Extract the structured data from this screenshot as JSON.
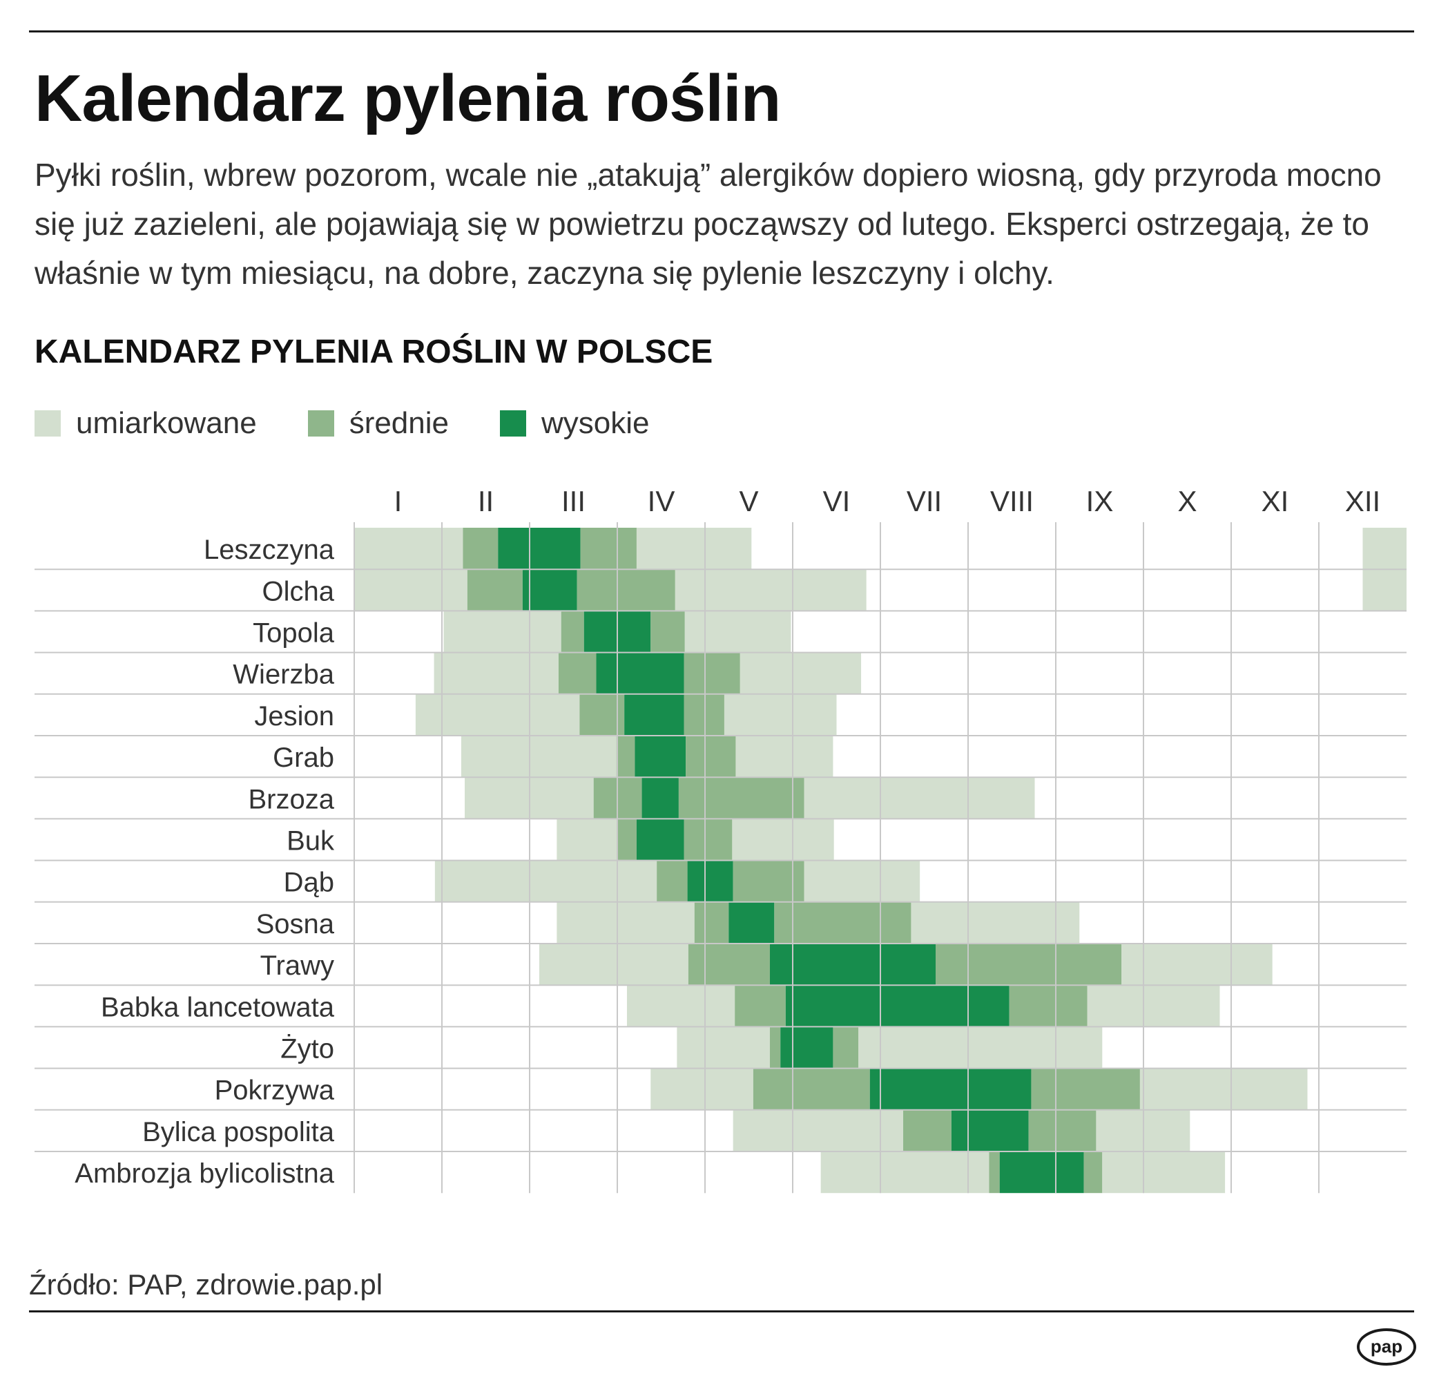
{
  "header": {
    "title": "Kalendarz pylenia roślin",
    "intro": "Pyłki roślin, wbrew pozorom, wcale nie „atakują” alergików dopiero wiosną, gdy przyroda mocno się już zazieleni, ale pojawiają się w powietrzu począwszy od lutego. Eksperci ostrzegają, że to właśnie w tym miesiącu, na dobre, zaczyna się pylenie leszczyny i olchy."
  },
  "footer": {
    "source": "Źródło: PAP, zdrowie.pap.pl",
    "logo_text": "pap",
    "logo_icon": "pap-logo-icon"
  },
  "chart_data": {
    "type": "table",
    "title": "KALENDARZ PYLENIA ROŚLIN W POLSCE",
    "legend_placement": "top-left",
    "x_unit": "month (1 = I … 13 = end of XII)",
    "xlim": [
      1,
      13
    ],
    "months": [
      "I",
      "II",
      "III",
      "IV",
      "V",
      "VI",
      "VII",
      "VIII",
      "IX",
      "X",
      "XI",
      "XII"
    ],
    "levels": [
      {
        "key": "umiarkowane",
        "name": "umiarkowane",
        "color": "#d3dfcf"
      },
      {
        "key": "srednie",
        "name": "średnie",
        "color": "#8fb68b"
      },
      {
        "key": "wysokie",
        "name": "wysokie",
        "color": "#178d4d"
      }
    ],
    "gridline_color": "#c8c8c8",
    "plants": [
      {
        "name": "Leszczyna",
        "periods": [
          {
            "level": "umiarkowane",
            "start": 1.0,
            "end": 2.24
          },
          {
            "level": "srednie",
            "start": 2.24,
            "end": 2.64
          },
          {
            "level": "wysokie",
            "start": 2.64,
            "end": 3.58
          },
          {
            "level": "srednie",
            "start": 3.58,
            "end": 4.22
          },
          {
            "level": "umiarkowane",
            "start": 4.22,
            "end": 5.53
          },
          {
            "level": "umiarkowane",
            "start": 12.5,
            "end": 13.0
          }
        ]
      },
      {
        "name": "Olcha",
        "periods": [
          {
            "level": "umiarkowane",
            "start": 1.0,
            "end": 2.29
          },
          {
            "level": "srednie",
            "start": 2.29,
            "end": 2.92
          },
          {
            "level": "wysokie",
            "start": 2.92,
            "end": 3.54
          },
          {
            "level": "srednie",
            "start": 3.54,
            "end": 4.66
          },
          {
            "level": "umiarkowane",
            "start": 4.66,
            "end": 6.84
          },
          {
            "level": "umiarkowane",
            "start": 12.5,
            "end": 13.0
          }
        ]
      },
      {
        "name": "Topola",
        "periods": [
          {
            "level": "umiarkowane",
            "start": 2.02,
            "end": 3.36
          },
          {
            "level": "srednie",
            "start": 3.36,
            "end": 3.62
          },
          {
            "level": "wysokie",
            "start": 3.62,
            "end": 4.38
          },
          {
            "level": "srednie",
            "start": 4.38,
            "end": 4.77
          },
          {
            "level": "umiarkowane",
            "start": 4.77,
            "end": 5.98
          }
        ]
      },
      {
        "name": "Wierzba",
        "periods": [
          {
            "level": "umiarkowane",
            "start": 1.91,
            "end": 3.33
          },
          {
            "level": "srednie",
            "start": 3.33,
            "end": 3.76
          },
          {
            "level": "wysokie",
            "start": 3.76,
            "end": 4.76
          },
          {
            "level": "srednie",
            "start": 4.76,
            "end": 5.4
          },
          {
            "level": "umiarkowane",
            "start": 5.4,
            "end": 6.78
          }
        ]
      },
      {
        "name": "Jesion",
        "periods": [
          {
            "level": "umiarkowane",
            "start": 1.7,
            "end": 3.57
          },
          {
            "level": "srednie",
            "start": 3.57,
            "end": 4.08
          },
          {
            "level": "wysokie",
            "start": 4.08,
            "end": 4.76
          },
          {
            "level": "srednie",
            "start": 4.76,
            "end": 5.22
          },
          {
            "level": "umiarkowane",
            "start": 5.22,
            "end": 6.5
          }
        ]
      },
      {
        "name": "Grab",
        "periods": [
          {
            "level": "umiarkowane",
            "start": 2.22,
            "end": 3.99
          },
          {
            "level": "srednie",
            "start": 3.99,
            "end": 4.2
          },
          {
            "level": "wysokie",
            "start": 4.2,
            "end": 4.78
          },
          {
            "level": "srednie",
            "start": 4.78,
            "end": 5.35
          },
          {
            "level": "umiarkowane",
            "start": 5.35,
            "end": 6.46
          }
        ]
      },
      {
        "name": "Brzoza",
        "periods": [
          {
            "level": "umiarkowane",
            "start": 2.26,
            "end": 3.73
          },
          {
            "level": "srednie",
            "start": 3.73,
            "end": 4.28
          },
          {
            "level": "wysokie",
            "start": 4.28,
            "end": 4.7
          },
          {
            "level": "srednie",
            "start": 4.7,
            "end": 6.13
          },
          {
            "level": "umiarkowane",
            "start": 6.13,
            "end": 8.76
          }
        ]
      },
      {
        "name": "Buk",
        "periods": [
          {
            "level": "umiarkowane",
            "start": 3.31,
            "end": 4.0
          },
          {
            "level": "srednie",
            "start": 4.0,
            "end": 4.22
          },
          {
            "level": "wysokie",
            "start": 4.22,
            "end": 4.76
          },
          {
            "level": "srednie",
            "start": 4.76,
            "end": 5.31
          },
          {
            "level": "umiarkowane",
            "start": 5.31,
            "end": 6.47
          }
        ]
      },
      {
        "name": "Dąb",
        "periods": [
          {
            "level": "umiarkowane",
            "start": 1.92,
            "end": 4.45
          },
          {
            "level": "srednie",
            "start": 4.45,
            "end": 4.8
          },
          {
            "level": "wysokie",
            "start": 4.8,
            "end": 5.32
          },
          {
            "level": "srednie",
            "start": 5.32,
            "end": 6.13
          },
          {
            "level": "umiarkowane",
            "start": 6.13,
            "end": 7.45
          }
        ]
      },
      {
        "name": "Sosna",
        "periods": [
          {
            "level": "umiarkowane",
            "start": 3.31,
            "end": 4.88
          },
          {
            "level": "srednie",
            "start": 4.88,
            "end": 5.27
          },
          {
            "level": "wysokie",
            "start": 5.27,
            "end": 5.79
          },
          {
            "level": "srednie",
            "start": 5.79,
            "end": 7.35
          },
          {
            "level": "umiarkowane",
            "start": 7.35,
            "end": 9.27
          }
        ]
      },
      {
        "name": "Trawy",
        "periods": [
          {
            "level": "umiarkowane",
            "start": 3.11,
            "end": 4.81
          },
          {
            "level": "srednie",
            "start": 4.81,
            "end": 5.74
          },
          {
            "level": "wysokie",
            "start": 5.74,
            "end": 7.63
          },
          {
            "level": "srednie",
            "start": 7.63,
            "end": 9.75
          },
          {
            "level": "umiarkowane",
            "start": 9.75,
            "end": 11.47
          }
        ]
      },
      {
        "name": "Babka lancetowata",
        "periods": [
          {
            "level": "umiarkowane",
            "start": 4.11,
            "end": 5.34
          },
          {
            "level": "srednie",
            "start": 5.34,
            "end": 5.92
          },
          {
            "level": "wysokie",
            "start": 5.92,
            "end": 8.47
          },
          {
            "level": "srednie",
            "start": 8.47,
            "end": 9.36
          },
          {
            "level": "umiarkowane",
            "start": 9.36,
            "end": 10.87
          }
        ]
      },
      {
        "name": "Żyto",
        "periods": [
          {
            "level": "umiarkowane",
            "start": 4.68,
            "end": 5.74
          },
          {
            "level": "srednie",
            "start": 5.74,
            "end": 5.86
          },
          {
            "level": "wysokie",
            "start": 5.86,
            "end": 6.46
          },
          {
            "level": "srednie",
            "start": 6.46,
            "end": 6.75
          },
          {
            "level": "umiarkowane",
            "start": 6.75,
            "end": 9.53
          }
        ]
      },
      {
        "name": "Pokrzywa",
        "periods": [
          {
            "level": "umiarkowane",
            "start": 4.38,
            "end": 5.55
          },
          {
            "level": "srednie",
            "start": 5.55,
            "end": 6.88
          },
          {
            "level": "wysokie",
            "start": 6.88,
            "end": 8.72
          },
          {
            "level": "srednie",
            "start": 8.72,
            "end": 9.96
          },
          {
            "level": "umiarkowane",
            "start": 9.96,
            "end": 11.87
          }
        ]
      },
      {
        "name": "Bylica pospolita",
        "periods": [
          {
            "level": "umiarkowane",
            "start": 5.32,
            "end": 7.26
          },
          {
            "level": "srednie",
            "start": 7.26,
            "end": 7.81
          },
          {
            "level": "wysokie",
            "start": 7.81,
            "end": 8.69
          },
          {
            "level": "srednie",
            "start": 8.69,
            "end": 9.46
          },
          {
            "level": "umiarkowane",
            "start": 9.46,
            "end": 10.53
          }
        ]
      },
      {
        "name": "Ambrozja bylicolistna",
        "periods": [
          {
            "level": "umiarkowane",
            "start": 6.32,
            "end": 8.24
          },
          {
            "level": "srednie",
            "start": 8.24,
            "end": 8.36
          },
          {
            "level": "wysokie",
            "start": 8.36,
            "end": 9.32
          },
          {
            "level": "srednie",
            "start": 9.32,
            "end": 9.53
          },
          {
            "level": "umiarkowane",
            "start": 9.53,
            "end": 10.93
          }
        ]
      }
    ]
  }
}
